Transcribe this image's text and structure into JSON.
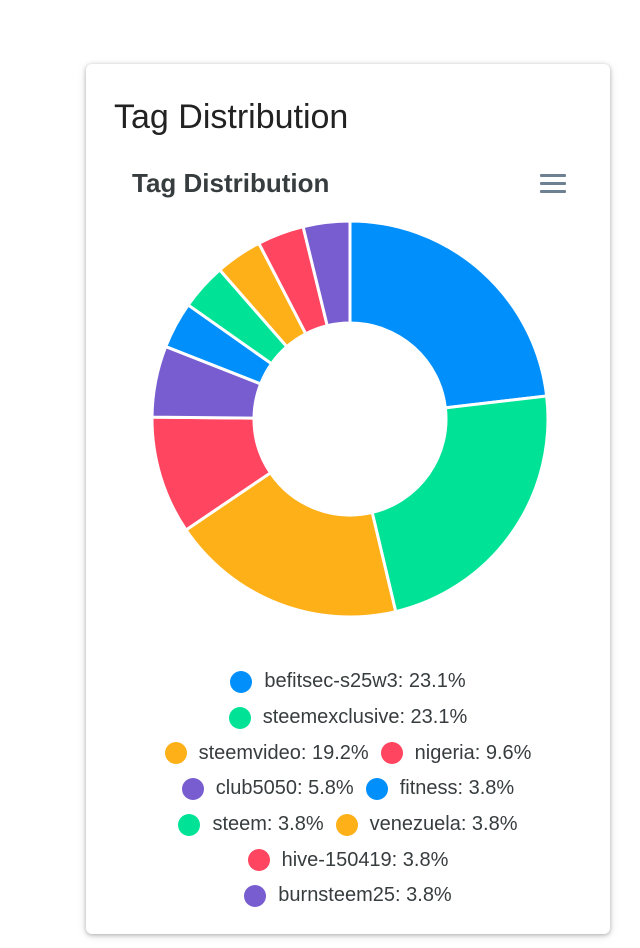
{
  "card": {
    "title": "Tag Distribution"
  },
  "menu": {
    "icon": "hamburger-menu-icon"
  },
  "chart_data": {
    "type": "pie",
    "variant": "donut",
    "title": "Tag Distribution",
    "legend_position": "bottom",
    "series": [
      {
        "name": "befitsec-s25w3",
        "value": 23.1,
        "label": "befitsec-s25w3: 23.1%",
        "color": "#008ffb"
      },
      {
        "name": "steemexclusive",
        "value": 23.1,
        "label": "steemexclusive: 23.1%",
        "color": "#00e396"
      },
      {
        "name": "steemvideo",
        "value": 19.2,
        "label": "steemvideo: 19.2%",
        "color": "#feb019"
      },
      {
        "name": "nigeria",
        "value": 9.6,
        "label": "nigeria: 9.6%",
        "color": "#ff4560"
      },
      {
        "name": "club5050",
        "value": 5.8,
        "label": "club5050: 5.8%",
        "color": "#775dd0"
      },
      {
        "name": "fitness",
        "value": 3.8,
        "label": "fitness: 3.8%",
        "color": "#008ffb"
      },
      {
        "name": "steem",
        "value": 3.8,
        "label": "steem: 3.8%",
        "color": "#00e396"
      },
      {
        "name": "venezuela",
        "value": 3.8,
        "label": "venezuela: 3.8%",
        "color": "#feb019"
      },
      {
        "name": "hive-150419",
        "value": 3.8,
        "label": "hive-150419: 3.8%",
        "color": "#ff4560"
      },
      {
        "name": "burnsteem25",
        "value": 3.8,
        "label": "burnsteem25: 3.8%",
        "color": "#775dd0"
      }
    ]
  }
}
